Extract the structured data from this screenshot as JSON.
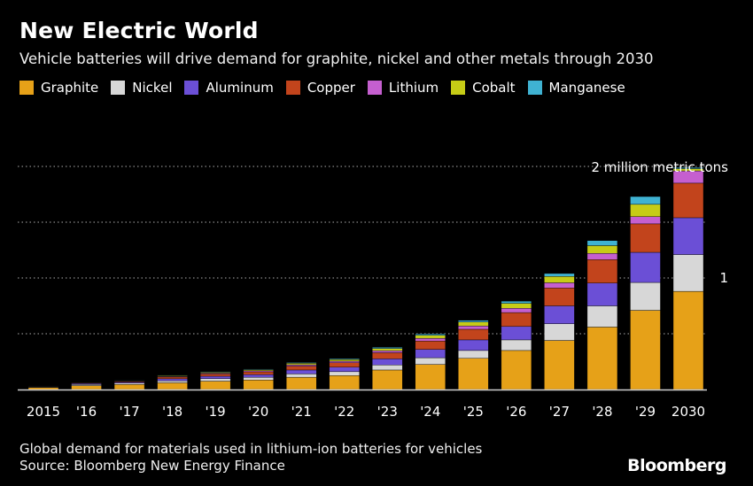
{
  "header": {
    "title": "New Electric World",
    "subtitle": "Vehicle batteries will drive demand for graphite, nickel and other metals through 2030"
  },
  "footer": {
    "note": "Global demand for materials used in lithium-ion batteries for vehicles",
    "source": "Source: Bloomberg New Energy Finance",
    "brand": "Bloomberg"
  },
  "chart_data": {
    "type": "bar",
    "stacked": true,
    "title": "New Electric World",
    "subtitle": "Vehicle batteries will drive demand for graphite, nickel and other metals through 2030",
    "xlabel": "",
    "ylabel": "",
    "ylim": [
      0,
      2
    ],
    "y_unit": "million metric tons",
    "y_tick_labels": [
      {
        "value": 2,
        "label": "2 million metric tons"
      },
      {
        "value": 1,
        "label": "1"
      }
    ],
    "grid": true,
    "legend_position": "top-left",
    "categories": [
      "2015",
      "'16",
      "'17",
      "'18",
      "'19",
      "'20",
      "'21",
      "'22",
      "'23",
      "'24",
      "'25",
      "'26",
      "'27",
      "'28",
      "'29",
      "2030"
    ],
    "series": [
      {
        "name": "Graphite",
        "color": "#e6a118",
        "values": [
          0.018,
          0.035,
          0.045,
          0.06,
          0.075,
          0.085,
          0.11,
          0.125,
          0.175,
          0.225,
          0.28,
          0.35,
          0.44,
          0.56,
          0.71,
          0.88
        ]
      },
      {
        "name": "Nickel",
        "color": "#d7d7d7",
        "values": [
          0.004,
          0.01,
          0.012,
          0.018,
          0.022,
          0.025,
          0.03,
          0.035,
          0.045,
          0.06,
          0.07,
          0.095,
          0.15,
          0.19,
          0.25,
          0.33
        ]
      },
      {
        "name": "Aluminum",
        "color": "#6b4fd6",
        "values": [
          0.004,
          0.008,
          0.01,
          0.018,
          0.022,
          0.024,
          0.035,
          0.04,
          0.055,
          0.075,
          0.095,
          0.12,
          0.16,
          0.205,
          0.27,
          0.33
        ]
      },
      {
        "name": "Copper",
        "color": "#c2441c",
        "values": [
          0.002,
          0.006,
          0.006,
          0.016,
          0.02,
          0.025,
          0.035,
          0.04,
          0.055,
          0.075,
          0.095,
          0.125,
          0.16,
          0.21,
          0.255,
          0.31
        ]
      },
      {
        "name": "Lithium",
        "color": "#c55fcf",
        "values": [
          0.0015,
          0.003,
          0.004,
          0.006,
          0.008,
          0.009,
          0.012,
          0.014,
          0.018,
          0.024,
          0.03,
          0.038,
          0.047,
          0.055,
          0.065,
          0.11
        ]
      },
      {
        "name": "Cobalt",
        "color": "#c6cc16",
        "values": [
          0.0015,
          0.003,
          0.004,
          0.006,
          0.008,
          0.01,
          0.013,
          0.015,
          0.02,
          0.027,
          0.035,
          0.045,
          0.057,
          0.07,
          0.11,
          0.02
        ]
      },
      {
        "name": "Manganese",
        "color": "#3fb2d2",
        "values": [
          0.001,
          0.002,
          0.002,
          0.004,
          0.005,
          0.005,
          0.007,
          0.008,
          0.01,
          0.012,
          0.015,
          0.019,
          0.026,
          0.045,
          0.07,
          0.01
        ]
      }
    ]
  }
}
